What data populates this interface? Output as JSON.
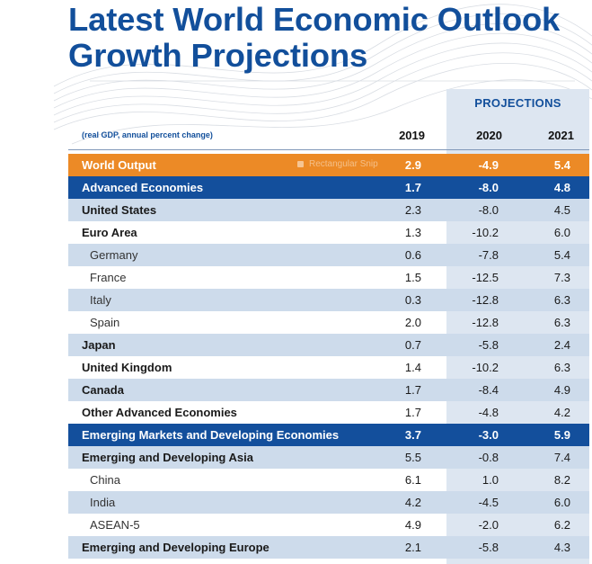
{
  "title": {
    "line1": "Latest World Economic Outlook",
    "line2": "Growth Projections"
  },
  "projections_label": "PROJECTIONS",
  "note": "(real GDP, annual percent change)",
  "years": [
    "2019",
    "2020",
    "2021"
  ],
  "overlay": {
    "snip_label": "Rectangular Snip",
    "snip_icon": "scissors-icon"
  },
  "colors": {
    "title": "#124f9b",
    "orange_row": "#ec8a26",
    "blue_row": "#134f9c",
    "light_row": "#cddbeb",
    "projection_column": "#dde6f1"
  },
  "rows": [
    {
      "label": "World Output",
      "v2019": "2.9",
      "v2020": "-4.9",
      "v2021": "5.4",
      "style": "orange"
    },
    {
      "label": "Advanced Economies",
      "v2019": "1.7",
      "v2020": "-8.0",
      "v2021": "4.8",
      "style": "blue"
    },
    {
      "label": "United States",
      "v2019": "2.3",
      "v2020": "-8.0",
      "v2021": "4.5",
      "style": "light bold"
    },
    {
      "label": "Euro Area",
      "v2019": "1.3",
      "v2020": "-10.2",
      "v2021": "6.0",
      "style": "white bold"
    },
    {
      "label": "Germany",
      "v2019": "0.6",
      "v2020": "-7.8",
      "v2021": "5.4",
      "style": "light sub"
    },
    {
      "label": "France",
      "v2019": "1.5",
      "v2020": "-12.5",
      "v2021": "7.3",
      "style": "white sub"
    },
    {
      "label": "Italy",
      "v2019": "0.3",
      "v2020": "-12.8",
      "v2021": "6.3",
      "style": "light sub"
    },
    {
      "label": "Spain",
      "v2019": "2.0",
      "v2020": "-12.8",
      "v2021": "6.3",
      "style": "white sub"
    },
    {
      "label": "Japan",
      "v2019": "0.7",
      "v2020": "-5.8",
      "v2021": "2.4",
      "style": "light bold"
    },
    {
      "label": "United Kingdom",
      "v2019": "1.4",
      "v2020": "-10.2",
      "v2021": "6.3",
      "style": "white bold"
    },
    {
      "label": "Canada",
      "v2019": "1.7",
      "v2020": "-8.4",
      "v2021": "4.9",
      "style": "light bold"
    },
    {
      "label": "Other Advanced Economies",
      "v2019": "1.7",
      "v2020": "-4.8",
      "v2021": "4.2",
      "style": "white bold"
    },
    {
      "label": "Emerging Markets and Developing Economies",
      "v2019": "3.7",
      "v2020": "-3.0",
      "v2021": "5.9",
      "style": "blue"
    },
    {
      "label": "Emerging and Developing Asia",
      "v2019": "5.5",
      "v2020": "-0.8",
      "v2021": "7.4",
      "style": "light bold"
    },
    {
      "label": "China",
      "v2019": "6.1",
      "v2020": "1.0",
      "v2021": "8.2",
      "style": "white sub"
    },
    {
      "label": "India",
      "v2019": "4.2",
      "v2020": "-4.5",
      "v2021": "6.0",
      "style": "light sub"
    },
    {
      "label": "ASEAN-5",
      "v2019": "4.9",
      "v2020": "-2.0",
      "v2021": "6.2",
      "style": "white sub"
    },
    {
      "label": "Emerging and Developing Europe",
      "v2019": "2.1",
      "v2020": "-5.8",
      "v2021": "4.3",
      "style": "light bold"
    }
  ]
}
